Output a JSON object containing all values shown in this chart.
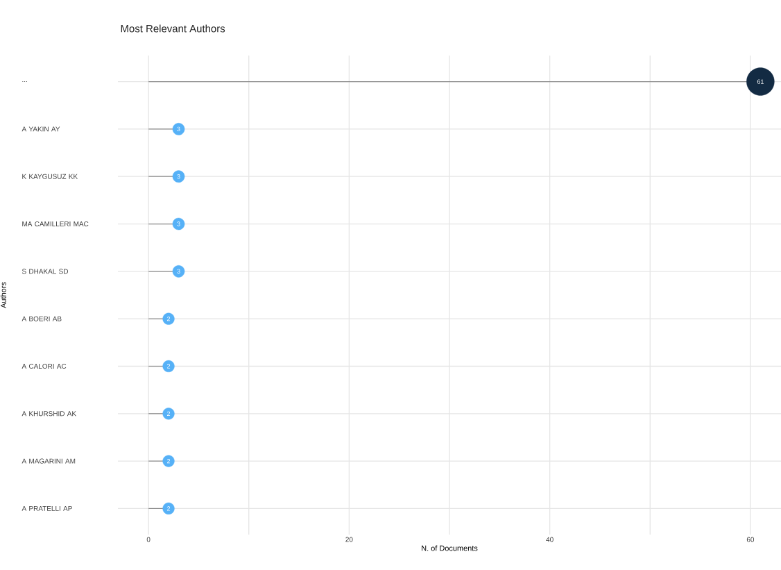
{
  "chart_data": {
    "type": "lollipop",
    "orientation": "horizontal",
    "title": "Most Relevant Authors",
    "xlabel": "N. of Documents",
    "ylabel": "Authors",
    "categories": [
      "...",
      "A YAKIN AY",
      "K KAYGUSUZ KK",
      "MA CAMILLERI MAC",
      "S DHAKAL SD",
      "A BOERI AB",
      "A CALORI AC",
      "A KHURSHID AK",
      "A MAGARINI AM",
      "A PRATELLI AP"
    ],
    "values": [
      61,
      3,
      3,
      3,
      3,
      2,
      2,
      2,
      2,
      2
    ],
    "colors": [
      "#132b43",
      "#56b1f7",
      "#56b1f7",
      "#56b1f7",
      "#56b1f7",
      "#56b1f7",
      "#56b1f7",
      "#56b1f7",
      "#56b1f7",
      "#56b1f7"
    ],
    "xlim": [
      -3.05,
      63.05
    ],
    "xticks": [
      0,
      {
        "value": 10,
        "label": null
      },
      20,
      {
        "value": 30,
        "label": null
      },
      40,
      {
        "value": 50,
        "label": null
      },
      60
    ],
    "data_labels": true,
    "grid": true,
    "marker": "circle",
    "line_style": "solid"
  }
}
